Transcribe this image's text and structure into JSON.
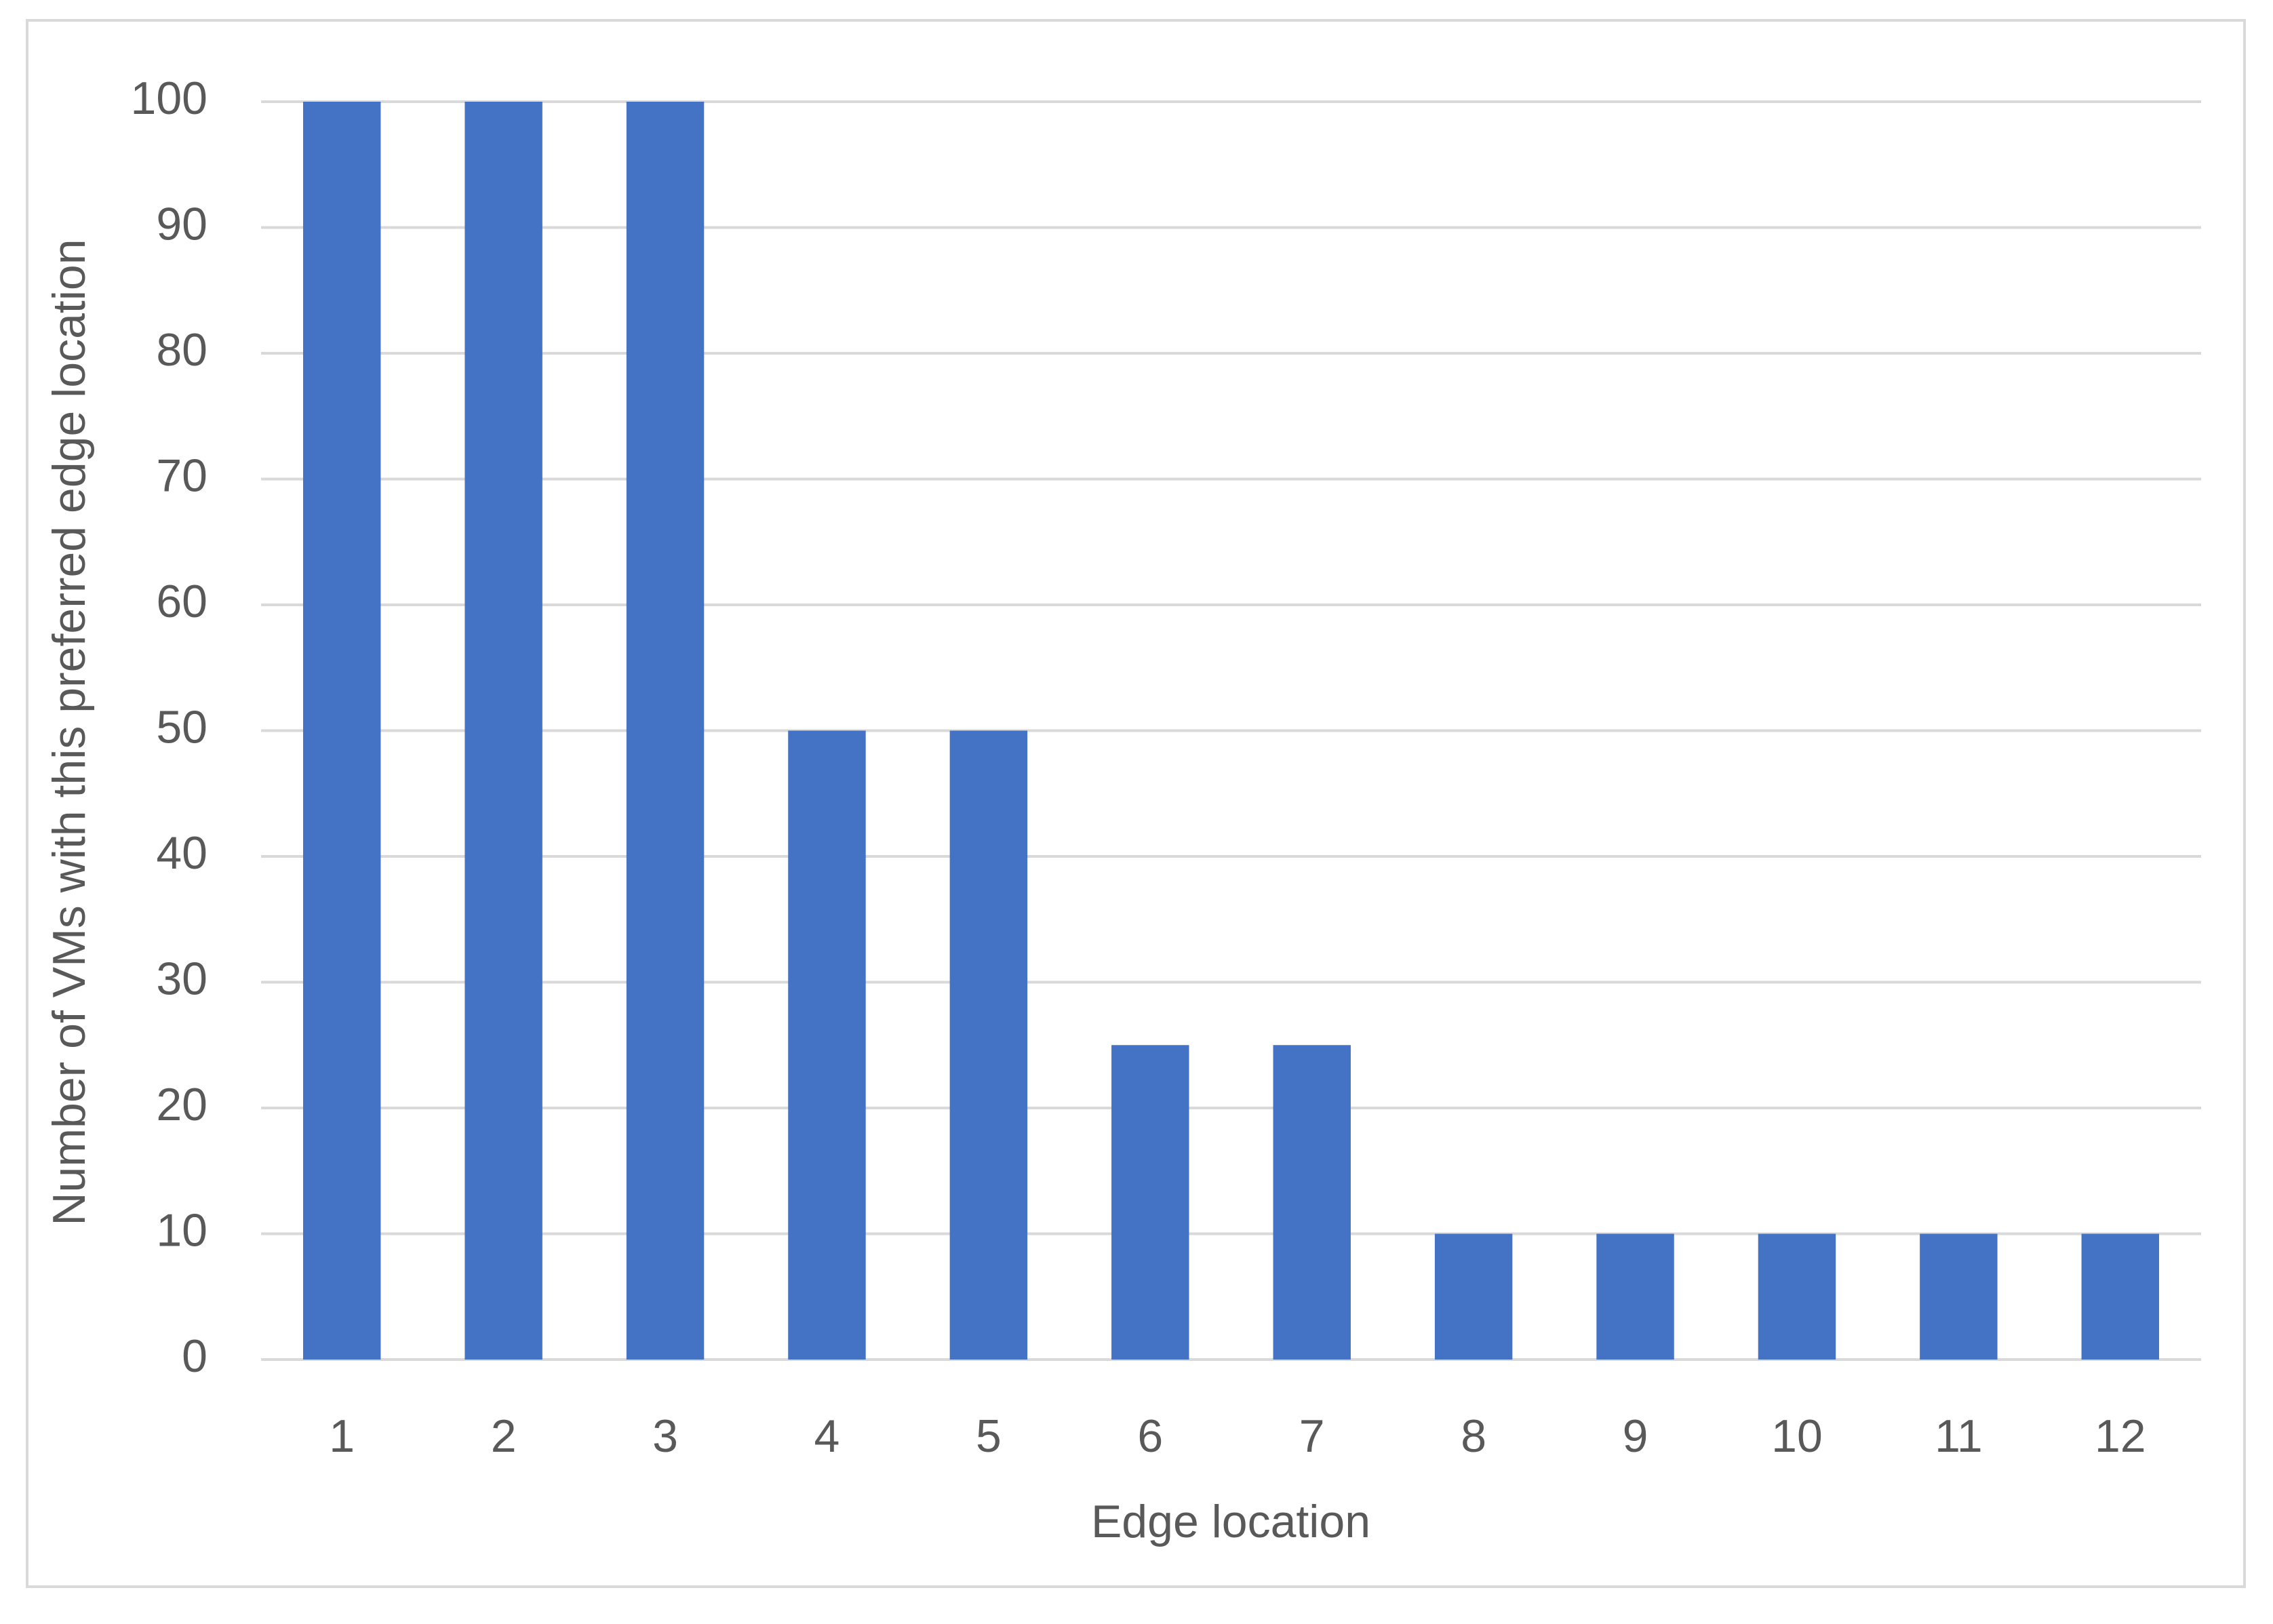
{
  "chart_data": {
    "type": "bar",
    "x_label": "Edge location",
    "y_label": "Number of VMs with this preferred edge location",
    "categories": [
      "1",
      "2",
      "3",
      "4",
      "5",
      "6",
      "7",
      "8",
      "9",
      "10",
      "11",
      "12"
    ],
    "values": [
      100,
      100,
      100,
      50,
      50,
      25,
      25,
      10,
      10,
      10,
      10,
      10
    ],
    "color": "#4472c4",
    "ylim": [
      0,
      100
    ],
    "yticks": [
      0,
      10,
      20,
      30,
      40,
      50,
      60,
      70,
      80,
      90,
      100
    ],
    "grid": true
  }
}
